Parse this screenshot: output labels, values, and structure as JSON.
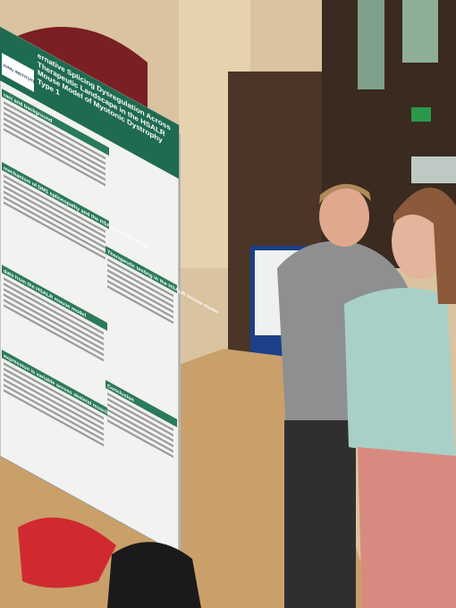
{
  "poster": {
    "logo": "KING INSTITUTE",
    "title": "ernative Splicing Dysregulation Across Therapeutic Landscape in the HSALR Mouse Model of Myotonic Dystrophy Type 1",
    "sections": [
      "ract and background",
      "mechanism of DM1 spliceopathy and the HSALR mouse model",
      "Therapeutic testing in the HSALR mouse model",
      "data from the HSALR mouse model",
      "expression is variable across skeletal muscle",
      "Conclusion"
    ]
  }
}
